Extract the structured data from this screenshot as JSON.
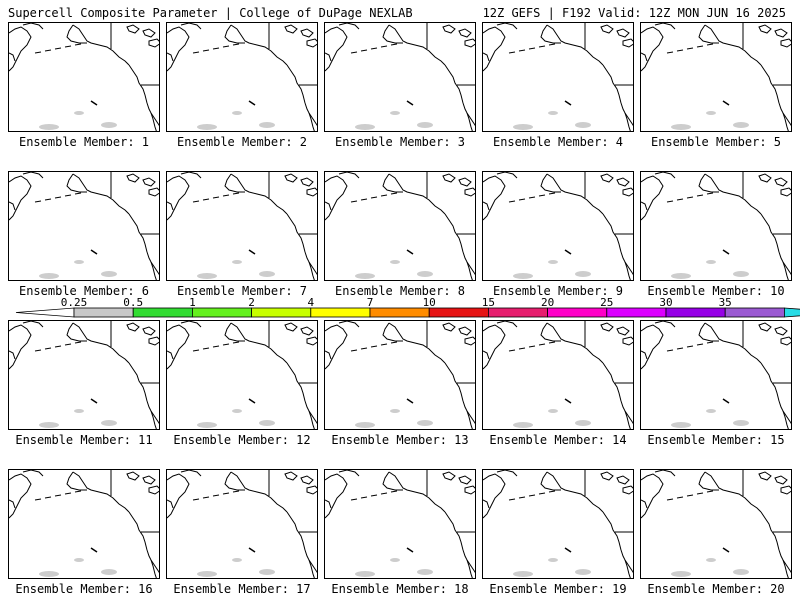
{
  "header": {
    "left_title": "Supercell Composite Parameter | College of DuPage NEXLAB",
    "right_title": "12Z GEFS | F192 Valid: 12Z MON JUN 16 2025"
  },
  "panel_label_prefix": "Ensemble Member:",
  "members": [
    {
      "label": "Ensemble Member: 1"
    },
    {
      "label": "Ensemble Member: 2"
    },
    {
      "label": "Ensemble Member: 3"
    },
    {
      "label": "Ensemble Member: 4"
    },
    {
      "label": "Ensemble Member: 5"
    },
    {
      "label": "Ensemble Member: 6"
    },
    {
      "label": "Ensemble Member: 7"
    },
    {
      "label": "Ensemble Member: 8"
    },
    {
      "label": "Ensemble Member: 9"
    },
    {
      "label": "Ensemble Member: 10"
    },
    {
      "label": "Ensemble Member: 11"
    },
    {
      "label": "Ensemble Member: 12"
    },
    {
      "label": "Ensemble Member: 13"
    },
    {
      "label": "Ensemble Member: 14"
    },
    {
      "label": "Ensemble Member: 15"
    },
    {
      "label": "Ensemble Member: 16"
    },
    {
      "label": "Ensemble Member: 17"
    },
    {
      "label": "Ensemble Member: 18"
    },
    {
      "label": "Ensemble Member: 19"
    },
    {
      "label": "Ensemble Member: 20"
    }
  ],
  "colorbar": {
    "levels": [
      "0.25",
      "0.5",
      "1",
      "2",
      "4",
      "7",
      "10",
      "15",
      "20",
      "25",
      "30",
      "35"
    ],
    "colors": [
      "#c8c8c8",
      "#32dc32",
      "#64f01e",
      "#c8ff00",
      "#ffff00",
      "#ff8c00",
      "#e61414",
      "#e61e6e",
      "#ff00c8",
      "#dc00ff",
      "#9600e6",
      "#9b5ad2",
      "#28dce6"
    ]
  }
}
